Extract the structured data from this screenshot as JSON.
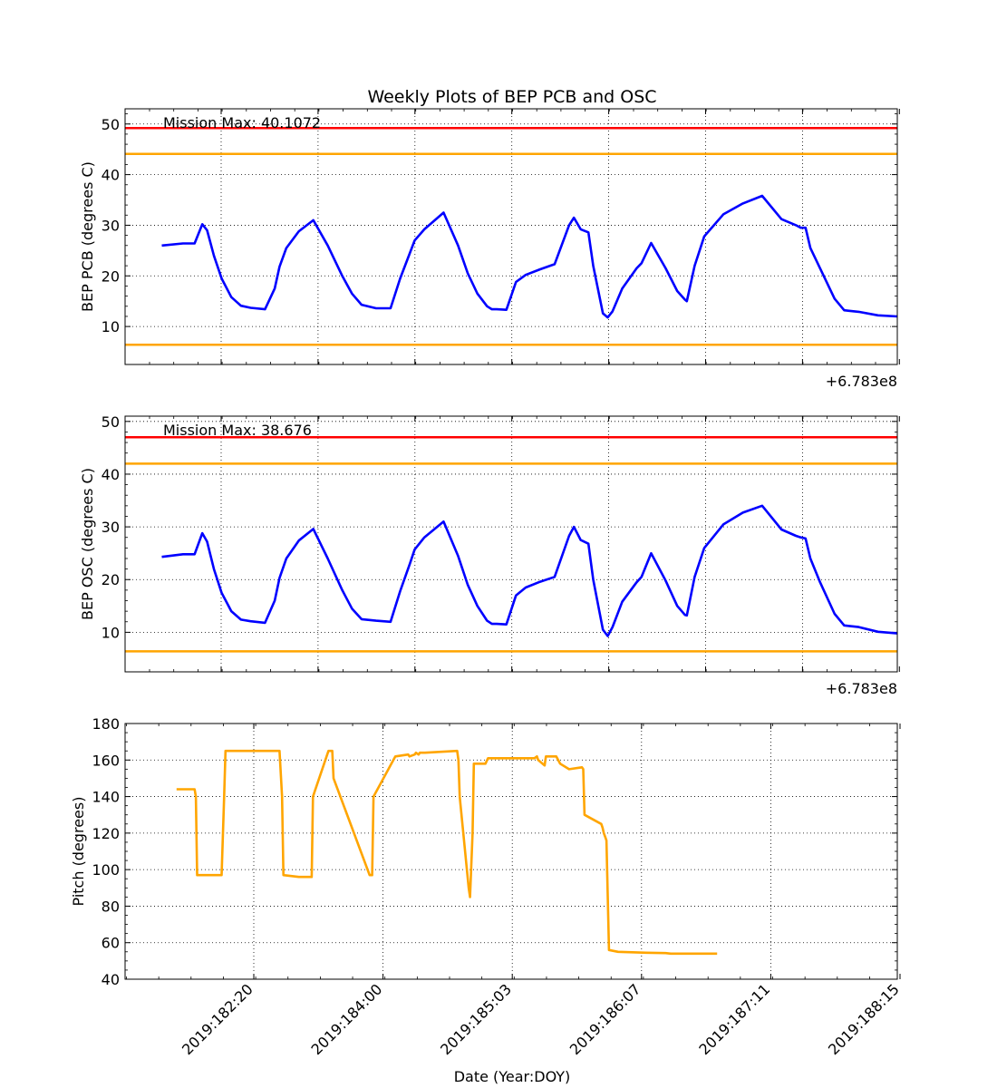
{
  "figure": {
    "title": "Weekly Plots of BEP PCB and OSC",
    "xlabel": "Date (Year:DOY)",
    "offset_label": "+6.783e8"
  },
  "chart_data": [
    {
      "type": "line",
      "ylabel": "BEP PCB (degrees C)",
      "annotation": "Mission Max: 40.1072",
      "ylim": [
        2.5,
        53
      ],
      "yticks": [
        10,
        20,
        30,
        40,
        50
      ],
      "x_range_days": [
        0,
        8.0
      ],
      "grid": true,
      "reference_lines": [
        {
          "y": 49.2,
          "color": "#ff0000"
        },
        {
          "y": 44.1,
          "color": "#ffa500"
        },
        {
          "y": 6.4,
          "color": "#ffa500"
        }
      ],
      "series": [
        {
          "color": "#0000ff",
          "x": [
            0.38,
            0.6,
            0.72,
            0.8,
            0.85,
            0.92,
            1.0,
            1.1,
            1.2,
            1.3,
            1.45,
            1.55,
            1.6,
            1.67,
            1.8,
            1.95,
            2.1,
            2.25,
            2.35,
            2.45,
            2.6,
            2.75,
            2.85,
            2.95,
            3.0,
            3.1,
            3.3,
            3.45,
            3.55,
            3.65,
            3.75,
            3.8,
            3.85,
            3.95,
            4.05,
            4.15,
            4.3,
            4.45,
            4.6,
            4.65,
            4.72,
            4.8,
            4.85,
            4.95,
            5.0,
            5.05,
            5.15,
            5.3,
            5.35,
            5.45,
            5.6,
            5.72,
            5.8,
            5.82,
            5.9,
            6.0,
            6.2,
            6.4,
            6.6,
            6.8,
            6.95,
            7.0,
            7.05,
            7.1,
            7.2,
            7.35,
            7.45,
            7.5,
            7.6,
            7.8,
            8.0
          ],
          "values": [
            26,
            26.4,
            26.4,
            30.2,
            29,
            24,
            19.5,
            15.8,
            14.1,
            13.7,
            13.4,
            17.5,
            21.8,
            25.5,
            28.8,
            31,
            26,
            20,
            16.5,
            14.3,
            13.6,
            13.6,
            19.5,
            24.5,
            27,
            29.2,
            32.5,
            26,
            20.5,
            16.5,
            14,
            13.4,
            13.4,
            13.3,
            18.8,
            20.2,
            21.3,
            22.3,
            30,
            31.5,
            29.2,
            28.6,
            22,
            12.6,
            11.8,
            13,
            17.5,
            21.5,
            22.5,
            26.5,
            21.5,
            17,
            15.3,
            15,
            22,
            27.8,
            32.2,
            34.3,
            35.8,
            31.2,
            30,
            29.5,
            29.5,
            25.5,
            21.5,
            15.5,
            13.2,
            13.1,
            12.9,
            12.2,
            12
          ]
        }
      ]
    },
    {
      "type": "line",
      "ylabel": "BEP OSC (degrees C)",
      "annotation": "Mission Max: 38.676",
      "ylim": [
        2.5,
        51
      ],
      "yticks": [
        10,
        20,
        30,
        40,
        50
      ],
      "x_range_days": [
        0,
        8.0
      ],
      "grid": true,
      "reference_lines": [
        {
          "y": 47.0,
          "color": "#ff0000"
        },
        {
          "y": 42.0,
          "color": "#ffa500"
        },
        {
          "y": 6.4,
          "color": "#ffa500"
        }
      ],
      "series": [
        {
          "color": "#0000ff",
          "x": [
            0.38,
            0.6,
            0.72,
            0.8,
            0.85,
            0.92,
            1.0,
            1.1,
            1.2,
            1.3,
            1.45,
            1.55,
            1.6,
            1.67,
            1.8,
            1.95,
            2.1,
            2.25,
            2.35,
            2.45,
            2.6,
            2.75,
            2.85,
            2.95,
            3.0,
            3.1,
            3.3,
            3.45,
            3.55,
            3.65,
            3.75,
            3.8,
            3.85,
            3.95,
            4.05,
            4.15,
            4.3,
            4.45,
            4.6,
            4.65,
            4.72,
            4.8,
            4.85,
            4.95,
            5.0,
            5.05,
            5.15,
            5.3,
            5.35,
            5.45,
            5.6,
            5.72,
            5.8,
            5.82,
            5.9,
            6.0,
            6.2,
            6.4,
            6.6,
            6.8,
            6.95,
            7.0,
            7.05,
            7.1,
            7.2,
            7.35,
            7.45,
            7.5,
            7.6,
            7.8,
            8.0
          ],
          "values": [
            24.3,
            24.8,
            24.8,
            28.8,
            27.2,
            22,
            17.5,
            14,
            12.4,
            12.1,
            11.8,
            16,
            20.3,
            24,
            27.4,
            29.6,
            24,
            18,
            14.5,
            12.5,
            12.2,
            12,
            17.8,
            23,
            25.7,
            28,
            31,
            24.5,
            19,
            15,
            12.2,
            11.6,
            11.6,
            11.5,
            17,
            18.5,
            19.6,
            20.5,
            28.3,
            30,
            27.5,
            26.8,
            20,
            10.5,
            9.3,
            11,
            15.8,
            19.5,
            20.5,
            25,
            19.8,
            15,
            13.3,
            13.2,
            20.5,
            26,
            30.5,
            32.7,
            34,
            29.5,
            28.3,
            28,
            27.8,
            24,
            19.5,
            13.5,
            11.3,
            11.2,
            11,
            10.1,
            9.8
          ]
        }
      ]
    },
    {
      "type": "line",
      "ylabel": "Pitch (degrees)",
      "ylim": [
        40,
        180
      ],
      "yticks": [
        40,
        60,
        80,
        100,
        120,
        140,
        160,
        180
      ],
      "x_range_days": [
        0,
        6.0
      ],
      "xtick_labels": [
        "2019:182:20",
        "2019:184:00",
        "2019:185:03",
        "2019:186:07",
        "2019:187:11",
        "2019:188:15"
      ],
      "grid": true,
      "series": [
        {
          "color": "#ffa500",
          "x": [
            0.4,
            0.54,
            0.55,
            0.56,
            0.75,
            0.77,
            0.78,
            1.2,
            1.22,
            1.23,
            1.35,
            1.45,
            1.46,
            1.58,
            1.61,
            1.62,
            1.9,
            1.92,
            1.93,
            2.1,
            2.2,
            2.21,
            2.25,
            2.26,
            2.28,
            2.29,
            2.32,
            2.33,
            2.58,
            2.59,
            2.6,
            2.67,
            2.68,
            2.7,
            2.71,
            2.8,
            2.82,
            3.18,
            3.2,
            3.21,
            3.26,
            3.27,
            3.35,
            3.38,
            3.45,
            3.55,
            3.56,
            3.57,
            3.7,
            3.71,
            3.72,
            3.73,
            3.74,
            3.76,
            3.83,
            4.05,
            4.2,
            4.24,
            4.26,
            4.27,
            4.28,
            4.29,
            4.38,
            4.39,
            4.49,
            4.51,
            4.52,
            4.53,
            4.58,
            4.59,
            4.6
          ],
          "values": [
            144,
            144,
            140,
            97,
            97,
            140,
            165,
            165,
            140,
            97,
            96,
            96,
            140,
            165,
            165,
            150,
            97,
            97,
            140,
            162,
            163,
            162,
            163,
            164,
            163,
            164,
            164,
            164,
            165,
            160,
            140,
            90,
            85,
            120,
            158,
            158,
            161,
            161,
            162,
            160,
            157,
            162,
            162,
            158,
            155,
            156,
            155,
            130,
            125,
            123,
            120,
            118,
            116,
            56,
            55,
            54.5,
            54.3,
            54,
            54,
            54,
            54,
            54,
            54,
            54,
            54,
            54,
            54,
            54,
            54,
            54,
            54
          ]
        }
      ]
    }
  ]
}
